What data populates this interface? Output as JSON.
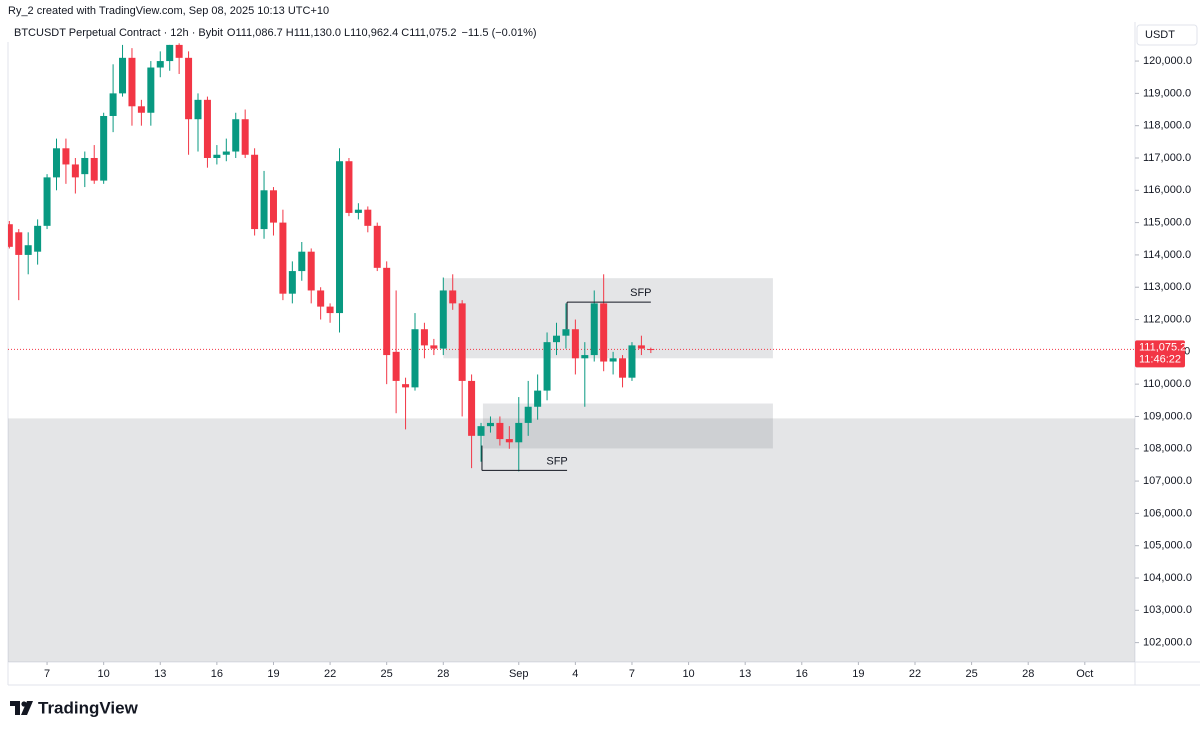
{
  "attribution": "Ry_2 created with TradingView.com, Sep 08, 2025 10:13 UTC+10",
  "branding": "TradingView",
  "chart_data": {
    "type": "candlestick",
    "symbol_title": "BTCUSDT Perpetual Contract · 12h · Bybit",
    "ohlc_labels": [
      "O111,086.7",
      "H111,130.0",
      "L110,962.4",
      "C111,075.2"
    ],
    "change_label": "−11.5 (−0.01%)",
    "currency": "USDT",
    "up_color": "#089981",
    "down_color": "#f23645",
    "zone_color": "#787b86",
    "xlim": [
      4.93,
      64.66
    ],
    "xticks": [
      7,
      10,
      13,
      16,
      19,
      22,
      25,
      28,
      {
        "value": 32,
        "label": "Sep"
      },
      {
        "value": 35,
        "label": "4"
      },
      {
        "value": 38,
        "label": "7"
      },
      {
        "value": 41,
        "label": "10"
      },
      {
        "value": 44,
        "label": "13"
      },
      {
        "value": 47,
        "label": "16"
      },
      {
        "value": 50,
        "label": "19"
      },
      {
        "value": 53,
        "label": "22"
      },
      {
        "value": 56,
        "label": "25"
      },
      {
        "value": 59,
        "label": "28"
      },
      {
        "value": 62,
        "label": "Oct"
      }
    ],
    "ylim": [
      101400,
      120590
    ],
    "yticks": [
      {
        "value": 102000,
        "label": "102,000.0"
      },
      {
        "value": 103000,
        "label": "103,000.0"
      },
      {
        "value": 104000,
        "label": "104,000.0"
      },
      {
        "value": 105000,
        "label": "105,000.0"
      },
      {
        "value": 106000,
        "label": "106,000.0"
      },
      {
        "value": 107000,
        "label": "107,000.0"
      },
      {
        "value": 108000,
        "label": "108,000.0"
      },
      {
        "value": 109000,
        "label": "109,000.0"
      },
      {
        "value": 110000,
        "label": "110,000.0"
      },
      {
        "value": 111000,
        "label": "111,000.0"
      },
      {
        "value": 112000,
        "label": "112,000.0"
      },
      {
        "value": 113000,
        "label": "113,000.0"
      },
      {
        "value": 114000,
        "label": "114,000.0"
      },
      {
        "value": 115000,
        "label": "115,000.0"
      },
      {
        "value": 116000,
        "label": "116,000.0"
      },
      {
        "value": 117000,
        "label": "117,000.0"
      },
      {
        "value": 118000,
        "label": "118,000.0"
      },
      {
        "value": 119000,
        "label": "119,000.0"
      },
      {
        "value": 120000,
        "label": "120,000.0"
      }
    ],
    "x": [
      5,
      5.5,
      6,
      6.5,
      7,
      7.5,
      8,
      8.5,
      9,
      9.5,
      10,
      10.5,
      11,
      11.5,
      12,
      12.5,
      13,
      13.5,
      14,
      14.5,
      15,
      15.5,
      16,
      16.5,
      17,
      17.5,
      18,
      18.5,
      19,
      19.5,
      20,
      20.5,
      21,
      21.5,
      22,
      22.5,
      23,
      23.5,
      24,
      24.5,
      25,
      25.5,
      26,
      26.5,
      27,
      27.5,
      28,
      28.5,
      29,
      29.5,
      30,
      30.5,
      31,
      31.5,
      32,
      32.5,
      33,
      33.5,
      34,
      34.5,
      35,
      35.5,
      36,
      36.5,
      37,
      37.5,
      38,
      38.5,
      39
    ],
    "open": [
      114950,
      114700,
      114000,
      114100,
      114900,
      116400,
      117300,
      116800,
      116500,
      117000,
      116300,
      118300,
      119000,
      120100,
      118600,
      118400,
      119800,
      120000,
      120500,
      120100,
      118200,
      118800,
      117000,
      117100,
      117200,
      118200,
      117100,
      114800,
      116000,
      115000,
      112800,
      113500,
      114100,
      112900,
      112400,
      112200,
      116900,
      115300,
      115400,
      114900,
      113600,
      111000,
      110000,
      109900,
      111700,
      111200,
      111100,
      112900,
      112500,
      110100,
      108400,
      108700,
      108800,
      108300,
      108200,
      108800,
      109300,
      109800,
      111300,
      111500,
      111700,
      110800,
      110900,
      112500,
      110700,
      110800,
      110200,
      111200,
      111086.7
    ],
    "high": [
      115050,
      114800,
      114700,
      115100,
      116500,
      117600,
      117600,
      117000,
      117200,
      117400,
      118400,
      119900,
      120500,
      120400,
      118800,
      120000,
      120300,
      120500,
      120550,
      120300,
      119000,
      118900,
      117400,
      117600,
      118400,
      118500,
      117300,
      116600,
      116100,
      115400,
      113800,
      114400,
      114200,
      113000,
      112500,
      117300,
      117000,
      115600,
      115500,
      115000,
      113800,
      112900,
      110200,
      112200,
      111900,
      111400,
      113300,
      113400,
      112600,
      110300,
      108800,
      109000,
      109000,
      108700,
      109600,
      110100,
      110300,
      111600,
      111900,
      112500,
      112000,
      111300,
      112900,
      113400,
      111000,
      110900,
      111300,
      111500,
      111130
    ],
    "low": [
      114200,
      112600,
      113400,
      113700,
      114800,
      116000,
      116200,
      115900,
      116100,
      116200,
      116200,
      117800,
      118900,
      118000,
      118000,
      118000,
      119500,
      119700,
      119600,
      117100,
      117200,
      116700,
      116800,
      116900,
      117000,
      117000,
      114600,
      114500,
      114600,
      112600,
      112500,
      113200,
      112500,
      112000,
      111900,
      111600,
      115200,
      115100,
      114700,
      113500,
      110000,
      109100,
      108600,
      109800,
      110800,
      110900,
      110900,
      112300,
      109000,
      107400,
      107600,
      108500,
      108100,
      108000,
      107300,
      108400,
      108900,
      109500,
      110900,
      111100,
      110300,
      109300,
      110700,
      110400,
      110300,
      109900,
      110100,
      110900,
      110962.4
    ],
    "close": [
      114250,
      114000,
      114300,
      114900,
      116400,
      117300,
      116800,
      116400,
      117000,
      116300,
      118300,
      119000,
      120100,
      118600,
      118400,
      119800,
      120000,
      120500,
      120100,
      118200,
      118800,
      117000,
      117100,
      117200,
      118200,
      117100,
      114800,
      116000,
      115000,
      112800,
      113500,
      114100,
      112900,
      112400,
      112200,
      116900,
      115300,
      115400,
      114900,
      113600,
      110900,
      110100,
      109900,
      111700,
      111200,
      111100,
      112900,
      112500,
      110100,
      108400,
      108700,
      108800,
      108300,
      108200,
      108800,
      109300,
      109800,
      111300,
      111500,
      111700,
      110800,
      110900,
      112500,
      110700,
      110800,
      110200,
      111200,
      111100,
      111075.2
    ],
    "last_price": {
      "value": 111075.2,
      "label": "111,075.2",
      "countdown": "11:46:22"
    },
    "zones": [
      {
        "x": [
          28,
          45.47
        ],
        "y": [
          110800,
          113280
        ]
      },
      {
        "x": [
          30.1,
          45.47
        ],
        "y": [
          108010,
          109400
        ]
      },
      {
        "x": [
          4.93,
          64.66
        ],
        "y": [
          101400,
          108940
        ]
      }
    ],
    "levels": [
      {
        "label": "SFP",
        "value": 112540,
        "x": [
          34.56,
          39.0
        ],
        "tick_to": 111700
      },
      {
        "label": "SFP",
        "value": 107330,
        "x": [
          30.05,
          34.56
        ],
        "tick_to": 108100
      }
    ]
  }
}
